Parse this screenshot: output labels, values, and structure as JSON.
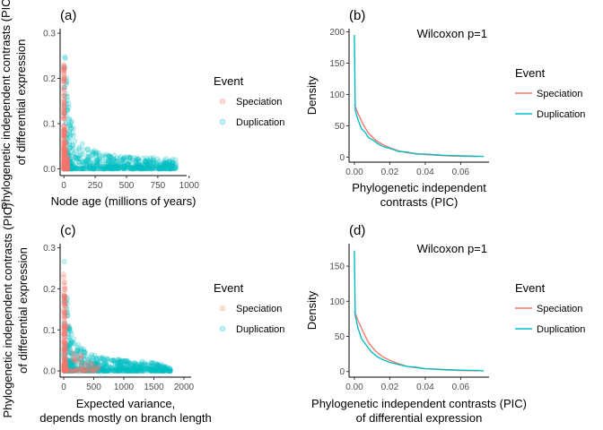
{
  "colors": {
    "speciation": "#F8766D",
    "duplication": "#00BFC4"
  },
  "chart_data": [
    {
      "panel": "(a)",
      "type": "scatter",
      "xlabel": [
        "Node age (millions of years)"
      ],
      "ylabel": [
        "Phylogenetic independent contrasts (PIC)",
        "of differential expression"
      ],
      "xlim": [
        -30,
        980
      ],
      "ylim": [
        -0.015,
        0.31
      ],
      "xticks": [
        "0",
        "250",
        "500",
        "750",
        "1000"
      ],
      "yticks": [
        "0.0",
        "0.1",
        "0.2",
        "0.3"
      ],
      "legend": {
        "title": "Event",
        "entries": [
          "Speciation",
          "Duplication"
        ],
        "placement": "right",
        "glyph": "point"
      },
      "series": [
        {
          "name": "Speciation",
          "x": [
            0,
            1,
            2,
            3,
            4,
            5,
            6,
            8,
            10,
            12,
            15,
            20,
            30
          ],
          "y_max": [
            0.24,
            0.23,
            0.2,
            0.18,
            0.16,
            0.15,
            0.13,
            0.12,
            0.1,
            0.09,
            0.06,
            0.04,
            0.02
          ]
        },
        {
          "name": "Duplication",
          "x": [
            0,
            50,
            100,
            200,
            300,
            400,
            500,
            600,
            700,
            800,
            900
          ],
          "y_max": [
            0.285,
            0.12,
            0.07,
            0.045,
            0.035,
            0.03,
            0.028,
            0.026,
            0.025,
            0.023,
            0.022
          ]
        }
      ]
    },
    {
      "panel": "(b)",
      "type": "line",
      "xlabel": [
        "Phylogenetic independent",
        "contrasts (PIC)"
      ],
      "ylabel": [
        "Density"
      ],
      "xlim": [
        -0.003,
        0.076
      ],
      "ylim": [
        -8,
        205
      ],
      "xticks": [
        "0.00",
        "0.02",
        "0.04",
        "0.06"
      ],
      "yticks": [
        "0",
        "50",
        "100",
        "150",
        "200"
      ],
      "annotation": "Wilcoxon p=1",
      "legend": {
        "title": "Event",
        "entries": [
          "Speciation",
          "Duplication"
        ],
        "placement": "right",
        "glyph": "line"
      },
      "series": [
        {
          "name": "Speciation",
          "x": [
            0,
            0.002,
            0.005,
            0.008,
            0.012,
            0.016,
            0.02,
            0.025,
            0.03,
            0.04,
            0.05,
            0.06,
            0.07
          ],
          "y": [
            84,
            70,
            52,
            38,
            27,
            20,
            15,
            10,
            7,
            4,
            2.5,
            1.5,
            1
          ]
        },
        {
          "name": "Duplication",
          "x": [
            0,
            0.0005,
            0.002,
            0.004,
            0.006,
            0.008,
            0.01,
            0.013,
            0.016,
            0.02,
            0.025,
            0.03,
            0.035,
            0.04,
            0.05,
            0.06,
            0.07,
            0.073
          ],
          "y": [
            195,
            75,
            60,
            45,
            40,
            31,
            28,
            22,
            17,
            14,
            9,
            8,
            5,
            5,
            3,
            2,
            1.5,
            1
          ]
        }
      ]
    },
    {
      "panel": "(c)",
      "type": "scatter",
      "xlabel": [
        "Expected variance,",
        "depends mostly on branch length"
      ],
      "ylabel": [
        "Phylogenetic independent contrasts (PIC)",
        "of differential expression"
      ],
      "xlim": [
        -60,
        2120
      ],
      "ylim": [
        -0.015,
        0.31
      ],
      "xticks": [
        "0",
        "500",
        "1000",
        "1500",
        "2000"
      ],
      "yticks": [
        "0.0",
        "0.1",
        "0.2",
        "0.3"
      ],
      "legend": {
        "title": "Event",
        "entries": [
          "Speciation",
          "Duplication"
        ],
        "placement": "right",
        "glyph": "point"
      },
      "series": [
        {
          "name": "Speciation",
          "x": [
            0,
            20,
            40,
            60,
            80,
            100,
            150,
            200,
            300,
            400,
            500,
            600
          ],
          "y_max": [
            0.24,
            0.2,
            0.17,
            0.14,
            0.11,
            0.09,
            0.07,
            0.05,
            0.04,
            0.03,
            0.025,
            0.02
          ]
        },
        {
          "name": "Duplication",
          "x": [
            0,
            100,
            200,
            400,
            600,
            800,
            1000,
            1200,
            1400,
            1600,
            1800
          ],
          "y_max": [
            0.285,
            0.11,
            0.07,
            0.045,
            0.035,
            0.03,
            0.027,
            0.025,
            0.022,
            0.02,
            0.005
          ]
        }
      ]
    },
    {
      "panel": "(d)",
      "type": "line",
      "xlabel": [
        "Phylogenetic independent contrasts (PIC)",
        "of differential expression"
      ],
      "ylabel": [
        "Density"
      ],
      "xlim": [
        -0.003,
        0.076
      ],
      "ylim": [
        -8,
        182
      ],
      "xticks": [
        "0.00",
        "0.02",
        "0.04",
        "0.06"
      ],
      "yticks": [
        "0",
        "50",
        "100",
        "150"
      ],
      "annotation": "Wilcoxon p=1",
      "legend": {
        "title": "Event",
        "entries": [
          "Speciation",
          "Duplication"
        ],
        "placement": "right",
        "glyph": "line"
      },
      "series": [
        {
          "name": "Speciation",
          "x": [
            0,
            0.002,
            0.005,
            0.008,
            0.012,
            0.016,
            0.02,
            0.025,
            0.03,
            0.04,
            0.05,
            0.06,
            0.07
          ],
          "y": [
            86,
            73,
            56,
            41,
            29,
            21,
            16,
            11,
            7,
            4,
            2.5,
            1.5,
            1
          ]
        },
        {
          "name": "Duplication",
          "x": [
            0,
            0.0005,
            0.002,
            0.004,
            0.006,
            0.008,
            0.01,
            0.013,
            0.016,
            0.02,
            0.025,
            0.03,
            0.035,
            0.04,
            0.05,
            0.06,
            0.07,
            0.073
          ],
          "y": [
            172,
            80,
            62,
            47,
            40,
            33,
            27,
            21,
            17,
            13,
            10,
            7,
            6,
            4,
            3,
            2,
            1.5,
            1
          ]
        }
      ]
    }
  ]
}
